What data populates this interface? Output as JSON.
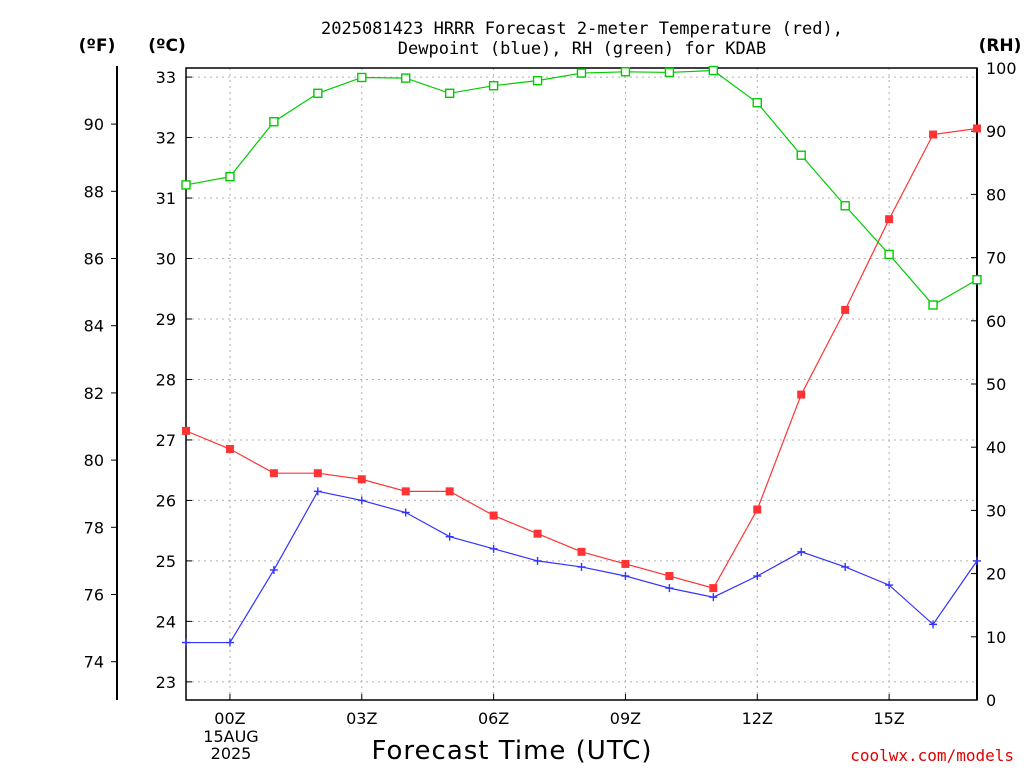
{
  "title_lines": [
    "2025081423 HRRR Forecast 2-meter Temperature (red),",
    "Dewpoint (blue), RH (green) for KDAB"
  ],
  "units": {
    "fahrenheit": "(ºF)",
    "celsius": "(ºC)",
    "rh": "(RH)"
  },
  "x_axis_title": "Forecast Time (UTC)",
  "credit": "coolwx.com/models",
  "date_label": [
    "15AUG",
    "2025"
  ],
  "colors": {
    "temperature": "#ff3333",
    "dewpoint": "#3333ff",
    "rh": "#00cc00",
    "grid": "#b0b0b0",
    "credit": "#e00000"
  },
  "chart_data": {
    "type": "line",
    "title": "2025081423 HRRR Forecast 2-meter Temperature (red), Dewpoint (blue), RH (green) for KDAB",
    "xlabel": "Forecast Time (UTC)",
    "x_hours": [
      -1,
      0,
      1,
      2,
      3,
      4,
      5,
      6,
      7,
      8,
      9,
      10,
      11,
      12,
      13,
      14,
      15,
      16,
      17
    ],
    "x_ticks": [
      0,
      3,
      6,
      9,
      12,
      15
    ],
    "x_tick_labels": [
      "00Z",
      "03Z",
      "06Z",
      "09Z",
      "12Z",
      "15Z"
    ],
    "xlim": [
      -1,
      17
    ],
    "celsius_ticks": [
      23,
      24,
      25,
      26,
      27,
      28,
      29,
      30,
      31,
      32,
      33
    ],
    "celsius_lim": [
      22.7,
      33.15
    ],
    "fahrenheit_ticks": [
      74,
      76,
      78,
      80,
      82,
      84,
      86,
      88,
      90
    ],
    "rh_ticks": [
      0,
      10,
      20,
      30,
      40,
      50,
      60,
      70,
      80,
      90,
      100
    ],
    "rh_lim": [
      0,
      100
    ],
    "grid": true,
    "series": [
      {
        "name": "Temperature",
        "axis": "celsius",
        "marker": "filled-square",
        "color": "#ff3333",
        "values": [
          27.15,
          26.85,
          26.45,
          26.45,
          26.35,
          26.15,
          26.15,
          25.75,
          25.45,
          25.15,
          24.95,
          24.75,
          24.55,
          25.85,
          27.75,
          29.15,
          30.65,
          32.05,
          32.15
        ]
      },
      {
        "name": "Dewpoint",
        "axis": "celsius",
        "marker": "plus",
        "color": "#3333ff",
        "values": [
          23.65,
          23.65,
          24.85,
          26.15,
          26.0,
          25.8,
          25.4,
          25.2,
          25.0,
          24.9,
          24.75,
          24.55,
          24.4,
          24.75,
          25.15,
          24.9,
          24.6,
          23.95,
          25.0
        ]
      },
      {
        "name": "RH",
        "axis": "rh",
        "marker": "open-square",
        "color": "#00cc00",
        "values": [
          81.5,
          82.8,
          91.5,
          96.0,
          98.5,
          98.4,
          96.0,
          97.2,
          98.0,
          99.2,
          99.4,
          99.3,
          99.6,
          94.5,
          86.2,
          78.2,
          70.5,
          62.5,
          66.5
        ]
      }
    ]
  }
}
